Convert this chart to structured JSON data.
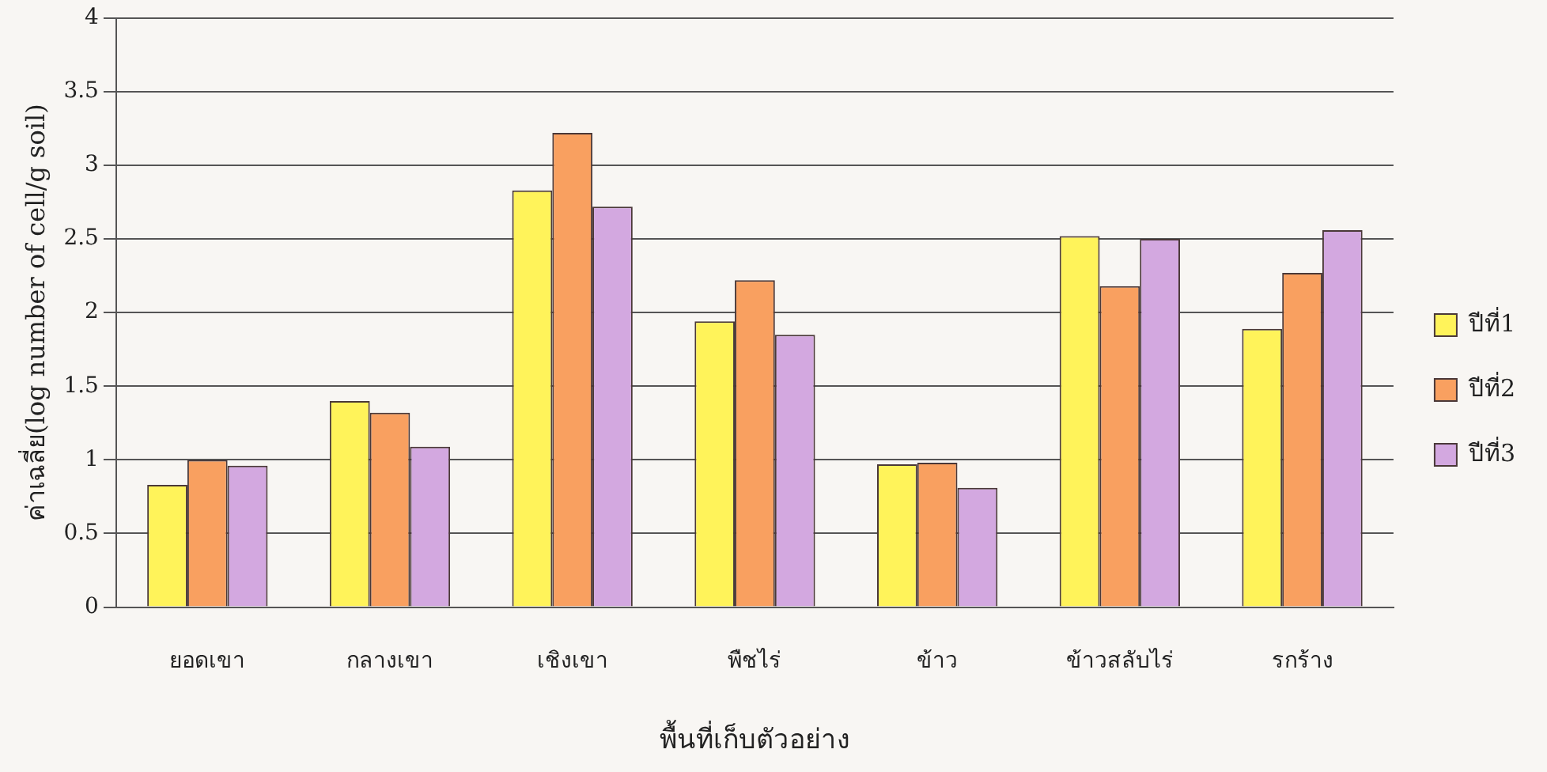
{
  "chart_data": {
    "type": "bar",
    "xlabel": "พื้นที่เก็บตัวอย่าง",
    "ylabel": "ค่าเฉลี่ย(log number of cell/g soil)",
    "categories": [
      "ยอดเขา",
      "กลางเขา",
      "เชิงเขา",
      "พืชไร่",
      "ข้าว",
      "ข้าวสลับไร่",
      "รกร้าง"
    ],
    "series": [
      {
        "name": "ปีที่1",
        "color": "#fff35a",
        "values": [
          0.83,
          1.4,
          2.83,
          1.94,
          0.97,
          2.52,
          1.89
        ]
      },
      {
        "name": "ปีที่2",
        "color": "#f9a060",
        "values": [
          1.0,
          1.32,
          3.22,
          2.22,
          0.98,
          2.18,
          2.27
        ]
      },
      {
        "name": "ปีที่3",
        "color": "#d3a8e0",
        "values": [
          0.96,
          1.09,
          2.72,
          1.85,
          0.81,
          2.5,
          2.56
        ]
      }
    ],
    "ylim": [
      0,
      4
    ],
    "yticks": [
      0,
      0.5,
      1,
      1.5,
      2,
      2.5,
      3,
      3.5,
      4
    ],
    "grid": "y",
    "legend": "right"
  }
}
